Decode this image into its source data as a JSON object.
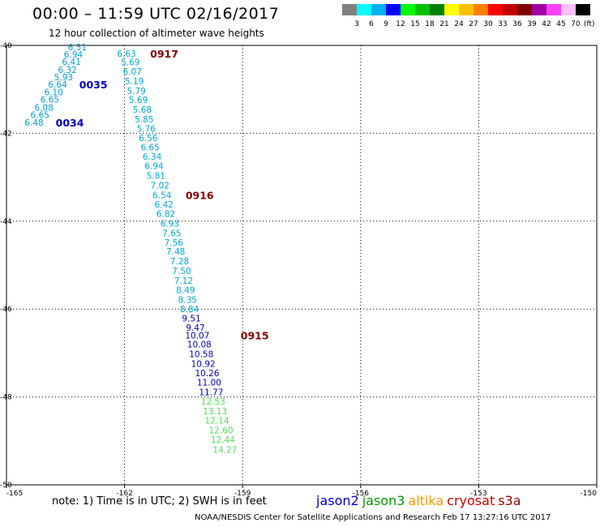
{
  "header": {
    "title": "00:00 – 11:59 UTC 02/16/2017",
    "subtitle": "12 hour collection of altimeter wave heights"
  },
  "colorbar": {
    "bins": [
      {
        "label": "3",
        "color": "#808080"
      },
      {
        "label": "6",
        "color": "#00ffff"
      },
      {
        "label": "9",
        "color": "#00b0f0"
      },
      {
        "label": "12",
        "color": "#0000ff"
      },
      {
        "label": "15",
        "color": "#00ff00"
      },
      {
        "label": "18",
        "color": "#00c000"
      },
      {
        "label": "21",
        "color": "#008000"
      },
      {
        "label": "24",
        "color": "#ffff00"
      },
      {
        "label": "27",
        "color": "#ffc000"
      },
      {
        "label": "30",
        "color": "#ff8000"
      },
      {
        "label": "33",
        "color": "#ff0000"
      },
      {
        "label": "36",
        "color": "#c00000"
      },
      {
        "label": "39",
        "color": "#800000"
      },
      {
        "label": "42",
        "color": "#a000a0"
      },
      {
        "label": "45",
        "color": "#ff40ff"
      },
      {
        "label": "70",
        "color": "#ffc0ff"
      },
      {
        "label": "",
        "color": "#000000"
      }
    ],
    "unit": "(ft)"
  },
  "chart_data": {
    "type": "scatter",
    "xlim": [
      -165,
      -150
    ],
    "ylim": [
      -50,
      -40
    ],
    "x_ticks": [
      "-165",
      "-162",
      "-159",
      "-156",
      "-153",
      "-150"
    ],
    "y_ticks": [
      "-40",
      "-42",
      "-44",
      "-46",
      "-48",
      "-50"
    ],
    "grid": true,
    "series": [
      {
        "name": "jason2",
        "color": "#00a0d8",
        "points": [
          {
            "x": -163.2,
            "y": -40.04,
            "v": "6.51"
          },
          {
            "x": -163.3,
            "y": -40.2,
            "v": "6.94"
          },
          {
            "x": -163.35,
            "y": -40.37,
            "v": "6.41"
          },
          {
            "x": -163.45,
            "y": -40.55,
            "v": "6.32"
          },
          {
            "x": -163.55,
            "y": -40.72,
            "v": "5.93"
          },
          {
            "x": -163.7,
            "y": -40.89,
            "v": "6.64"
          },
          {
            "x": -163.8,
            "y": -41.06,
            "v": "6.10"
          },
          {
            "x": -163.9,
            "y": -41.23,
            "v": "6.65"
          },
          {
            "x": -164.05,
            "y": -41.41,
            "v": "6.08"
          },
          {
            "x": -164.15,
            "y": -41.58,
            "v": "6.65"
          },
          {
            "x": -164.3,
            "y": -41.75,
            "v": "6.48"
          }
        ]
      },
      {
        "name": "cryosat",
        "color": "#00a8d8",
        "points": [
          {
            "x": -161.95,
            "y": -40.18,
            "v": "6.63"
          },
          {
            "x": -161.85,
            "y": -40.38,
            "v": "5.69"
          },
          {
            "x": -161.8,
            "y": -40.59,
            "v": "6.07"
          },
          {
            "x": -161.75,
            "y": -40.81,
            "v": "5.19"
          },
          {
            "x": -161.7,
            "y": -41.03,
            "v": "5.79"
          },
          {
            "x": -161.65,
            "y": -41.24,
            "v": "5.69"
          },
          {
            "x": -161.55,
            "y": -41.46,
            "v": "5.68"
          },
          {
            "x": -161.5,
            "y": -41.68,
            "v": "5.85"
          },
          {
            "x": -161.45,
            "y": -41.89,
            "v": "5.76"
          },
          {
            "x": -161.4,
            "y": -42.1,
            "v": "6.56"
          },
          {
            "x": -161.35,
            "y": -42.32,
            "v": "6.65"
          },
          {
            "x": -161.3,
            "y": -42.53,
            "v": "6.34"
          },
          {
            "x": -161.25,
            "y": -42.74,
            "v": "6.94"
          },
          {
            "x": -161.2,
            "y": -42.96,
            "v": "5.81"
          },
          {
            "x": -161.1,
            "y": -43.18,
            "v": "7.02"
          },
          {
            "x": -161.05,
            "y": -43.4,
            "v": "6.54"
          },
          {
            "x": -161.0,
            "y": -43.62,
            "v": "6.42"
          },
          {
            "x": -160.95,
            "y": -43.83,
            "v": "6.82"
          },
          {
            "x": -160.85,
            "y": -44.05,
            "v": "6.93"
          },
          {
            "x": -160.8,
            "y": -44.27,
            "v": "7.65"
          },
          {
            "x": -160.75,
            "y": -44.48,
            "v": "7.56"
          },
          {
            "x": -160.7,
            "y": -44.69,
            "v": "7.48"
          },
          {
            "x": -160.6,
            "y": -44.91,
            "v": "7.28"
          },
          {
            "x": -160.55,
            "y": -45.13,
            "v": "7.50"
          },
          {
            "x": -160.5,
            "y": -45.35,
            "v": "7.12"
          },
          {
            "x": -160.45,
            "y": -45.56,
            "v": "8.49"
          },
          {
            "x": -160.4,
            "y": -45.78,
            "v": "8.35"
          },
          {
            "x": -160.35,
            "y": -46.0,
            "v": "8.84"
          },
          {
            "x": -160.3,
            "y": -46.21,
            "v": "9.51",
            "c": "#0000c0"
          },
          {
            "x": -160.2,
            "y": -46.42,
            "v": "9.47",
            "c": "#0000c0"
          },
          {
            "x": -160.15,
            "y": -46.6,
            "v": "10.07",
            "c": "#0000c0"
          },
          {
            "x": -160.1,
            "y": -46.8,
            "v": "10.08",
            "c": "#0000c0"
          },
          {
            "x": -160.05,
            "y": -47.02,
            "v": "10.58",
            "c": "#0000c0"
          },
          {
            "x": -160.0,
            "y": -47.24,
            "v": "10.92",
            "c": "#0000c0"
          },
          {
            "x": -159.9,
            "y": -47.45,
            "v": "10.26",
            "c": "#0000c0"
          },
          {
            "x": -159.85,
            "y": -47.67,
            "v": "11.00",
            "c": "#0000c0"
          },
          {
            "x": -159.8,
            "y": -47.89,
            "v": "11.77",
            "c": "#0000c0"
          },
          {
            "x": -159.75,
            "y": -48.1,
            "v": "12.53",
            "c": "#55dd55"
          },
          {
            "x": -159.7,
            "y": -48.32,
            "v": "13.13",
            "c": "#55dd55"
          },
          {
            "x": -159.65,
            "y": -48.53,
            "v": "12.14",
            "c": "#55dd55"
          },
          {
            "x": -159.55,
            "y": -48.75,
            "v": "12.60",
            "c": "#55dd55"
          },
          {
            "x": -159.5,
            "y": -48.97,
            "v": "12.44",
            "c": "#55dd55"
          },
          {
            "x": -159.45,
            "y": -49.2,
            "v": "14.27",
            "c": "#55dd55"
          }
        ]
      }
    ],
    "time_labels": [
      {
        "text": "0917",
        "x": -161.35,
        "y": -40.18,
        "color": "#800000"
      },
      {
        "text": "0035",
        "x": -163.15,
        "y": -40.89,
        "color": "#0000c0"
      },
      {
        "text": "0034",
        "x": -163.75,
        "y": -41.75,
        "color": "#0000c0"
      },
      {
        "text": "0916",
        "x": -160.45,
        "y": -43.4,
        "color": "#800000"
      },
      {
        "text": "0915",
        "x": -159.05,
        "y": -46.6,
        "color": "#800000"
      }
    ]
  },
  "note": "note: 1) Time is in UTC; 2) SWH is in feet",
  "legend": [
    {
      "label": "jason2",
      "color": "#0000cc"
    },
    {
      "label": "jason3",
      "color": "#009900"
    },
    {
      "label": "altika",
      "color": "#ff9900"
    },
    {
      "label": "cryosat",
      "color": "#cc0000"
    },
    {
      "label": "s3a",
      "color": "#990000"
    }
  ],
  "footer": "NOAA/NESDIS Center for Satellite Applications and Research   Feb 17 13:27:16 UTC 2017"
}
